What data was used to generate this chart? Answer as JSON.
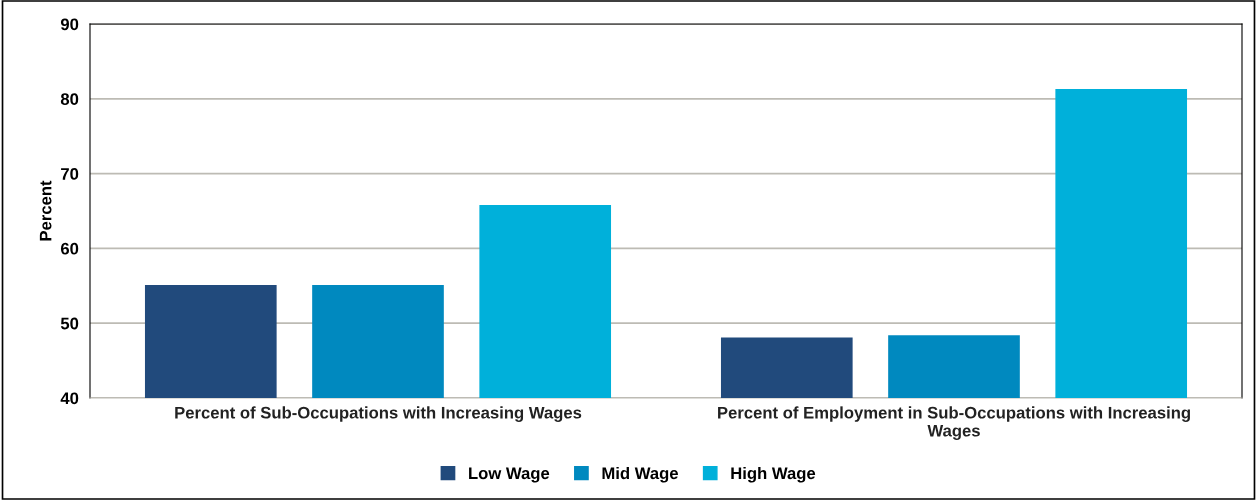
{
  "chart_data": {
    "type": "bar",
    "ylabel": "Percent",
    "categories": [
      "Percent of Sub-Occupations with Increasing Wages",
      "Percent of Employment in Sub-Occupations with Increasing\nWages"
    ],
    "series": [
      {
        "name": "Low Wage",
        "color": "#214a7c",
        "values": [
          55.1,
          48.1
        ]
      },
      {
        "name": "Mid Wage",
        "color": "#0089bf",
        "values": [
          55.1,
          48.4
        ]
      },
      {
        "name": "High Wage",
        "color": "#00b0da",
        "values": [
          65.8,
          81.3
        ]
      }
    ],
    "ylim": [
      40,
      90
    ],
    "yticks": [
      40,
      50,
      60,
      70,
      80,
      90
    ],
    "grid": "y",
    "legend": "bottom"
  }
}
